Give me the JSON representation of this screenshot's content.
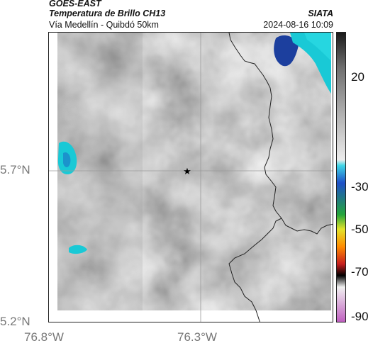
{
  "header": {
    "satellite": "GOES-EAST",
    "product": "Temperatura de Brillo CH13",
    "organization": "SIATA",
    "route": "Vía Medellín - Quibdó 50km",
    "timestamp": "2024-08-16 10:09"
  },
  "map": {
    "lat_labels": [
      "5.7°N",
      "5.2°N"
    ],
    "lon_labels": [
      "76.8°W",
      "76.3°W"
    ],
    "marker": "star",
    "colors": {
      "cloud_cold_cyan": "#19c9d6",
      "cloud_very_cold_blue": "#1c3f9e",
      "border": "#222222",
      "gridline": "#9a9a9a"
    }
  },
  "colorbar": {
    "labels": [
      "20",
      "-30",
      "-50",
      "-70",
      "-90"
    ],
    "stops": [
      "#1a1a1a",
      "#6e6e6e",
      "#b0b0b0",
      "#ececec",
      "#3fd6e6",
      "#1e50c8",
      "#24a63a",
      "#e3e32a",
      "#ff8c00",
      "#c81e1e",
      "#000000",
      "#f0f0f0",
      "#c060c0"
    ]
  }
}
